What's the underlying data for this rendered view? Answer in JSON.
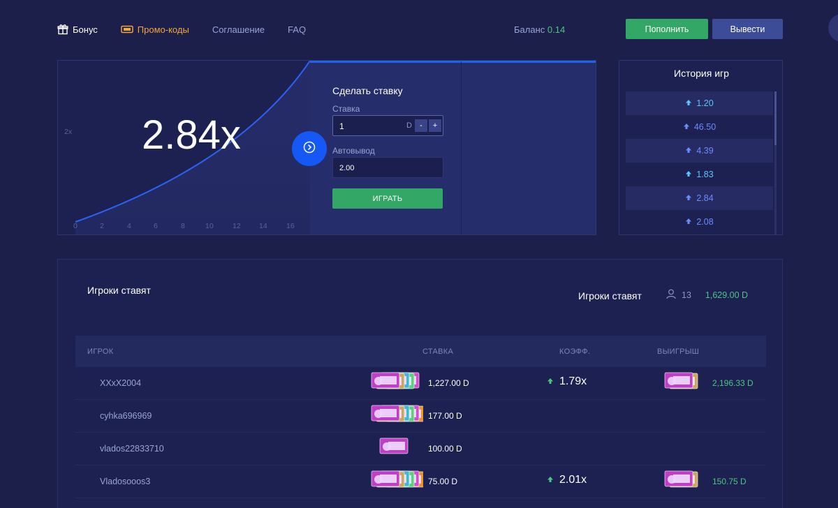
{
  "nav": {
    "bonus": "Бонус",
    "promo": "Промо-коды",
    "agreement": "Соглашение",
    "faq": "FAQ"
  },
  "balance": {
    "label": "Баланс",
    "value": "0.14"
  },
  "buttons": {
    "deposit": "Пополнить",
    "withdraw": "Вывести"
  },
  "game": {
    "multiplier": "2.84x",
    "y_tick": "2x",
    "x_ticks": [
      "0",
      "2",
      "4",
      "6",
      "8",
      "10",
      "12",
      "14",
      "16"
    ]
  },
  "bet": {
    "title": "Сделать ставку",
    "stake_label": "Ставка",
    "stake_value": "1",
    "currency": "D",
    "minus": "-",
    "plus": "+",
    "auto_label": "Автовывод",
    "auto_value": "2.00",
    "play": "ИГРАТЬ"
  },
  "history": {
    "title": "История игр",
    "items": [
      {
        "value": "1.20",
        "tone": "hi"
      },
      {
        "value": "46.50",
        "tone": "lo"
      },
      {
        "value": "4.39",
        "tone": "lo"
      },
      {
        "value": "1.83",
        "tone": "hi"
      },
      {
        "value": "2.84",
        "tone": "lo"
      },
      {
        "value": "2.08",
        "tone": "lo"
      }
    ]
  },
  "players": {
    "title": "Игроки ставят",
    "title2": "Игроки ставят",
    "count": "13",
    "total": "1,629.00 D",
    "columns": {
      "player": "ИГРОК",
      "bet": "СТАВКА",
      "coef": "КОЭФФ.",
      "win": "ВЫИГРЫШ"
    },
    "rows": [
      {
        "name": "XXxX2004",
        "bet": "1,227.00 D",
        "coef": "1.79x",
        "win": "2,196.33 D"
      },
      {
        "name": "cyhka696969",
        "bet": "177.00 D",
        "coef": "",
        "win": ""
      },
      {
        "name": "vlados22833710",
        "bet": "100.00 D",
        "coef": "",
        "win": ""
      },
      {
        "name": "Vladosooos3",
        "bet": "75.00 D",
        "coef": "2.01x",
        "win": "150.75 D"
      }
    ]
  },
  "colors": {
    "background": "#1b1f4a",
    "accent_green": "#33a766",
    "accent_blue": "#1558f5",
    "promo_orange": "#f3a63b",
    "positive_text": "#4cc77d"
  }
}
